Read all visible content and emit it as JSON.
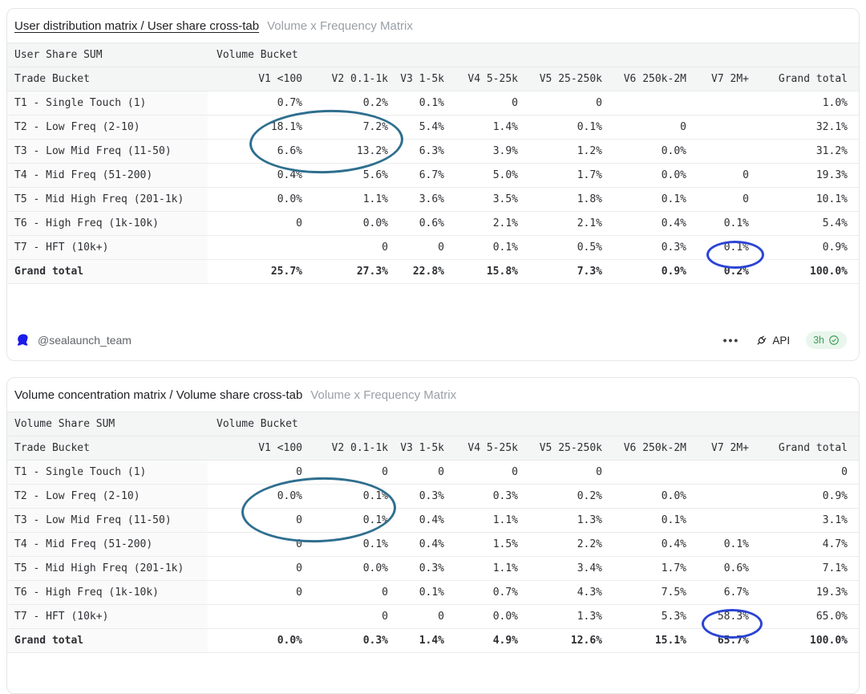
{
  "colors": {
    "annotation_teal": "#2f6f8f",
    "annotation_blue": "#2b45d4",
    "logo_blue": "#1b1ce8",
    "badge_green_bg": "#e9f6ed",
    "badge_green_text": "#3f9e5a"
  },
  "footer": {
    "handle": "@sealaunch_team",
    "menu_icon": "•••",
    "api_label": "API",
    "freshness": "3h",
    "check_icon": "check-seal",
    "plug_icon": "plug"
  },
  "chart_data": [
    {
      "type": "table",
      "title": "User distribution matrix / User share cross-tab",
      "subtitle": "Volume x Frequency Matrix",
      "measure_label": "User Share SUM",
      "bucket_group_label": "Volume Bucket",
      "row_header": "Trade Bucket",
      "columns": [
        "V1 <100",
        "V2 0.1-1k",
        "V3 1-5k",
        "V4 5-25k",
        "V5 25-250k",
        "V6 250k-2M",
        "V7 2M+",
        "Grand total"
      ],
      "rows": [
        {
          "label": "T1 - Single Touch (1)",
          "values": [
            "0.7%",
            "0.2%",
            "0.1%",
            "0",
            "0",
            "",
            "",
            "1.0%"
          ]
        },
        {
          "label": "T2 - Low Freq (2-10)",
          "values": [
            "18.1%",
            "7.2%",
            "5.4%",
            "1.4%",
            "0.1%",
            "0",
            "",
            "32.1%"
          ]
        },
        {
          "label": "T3 - Low Mid Freq (11-50)",
          "values": [
            "6.6%",
            "13.2%",
            "6.3%",
            "3.9%",
            "1.2%",
            "0.0%",
            "",
            "31.2%"
          ]
        },
        {
          "label": "T4 - Mid Freq (51-200)",
          "values": [
            "0.4%",
            "5.6%",
            "6.7%",
            "5.0%",
            "1.7%",
            "0.0%",
            "0",
            "19.3%"
          ]
        },
        {
          "label": "T5 - Mid High Freq (201-1k)",
          "values": [
            "0.0%",
            "1.1%",
            "3.6%",
            "3.5%",
            "1.8%",
            "0.1%",
            "0",
            "10.1%"
          ]
        },
        {
          "label": "T6 - High Freq (1k-10k)",
          "values": [
            "0",
            "0.0%",
            "0.6%",
            "2.1%",
            "2.1%",
            "0.4%",
            "0.1%",
            "5.4%"
          ]
        },
        {
          "label": "T7 - HFT (10k+)",
          "values": [
            "",
            "0",
            "0",
            "0.1%",
            "0.5%",
            "0.3%",
            "0.1%",
            "0.9%"
          ]
        },
        {
          "label": "Grand total",
          "values": [
            "25.7%",
            "27.3%",
            "22.8%",
            "15.8%",
            "7.3%",
            "0.9%",
            "0.2%",
            "100.0%"
          ],
          "bold": true
        }
      ],
      "annotations": [
        {
          "shape": "ellipse",
          "color": "teal",
          "circled_cells": "V1-V2 of T2-T3",
          "circled_values": [
            "18.1%",
            "7.2%",
            "6.6%",
            "13.2%"
          ]
        },
        {
          "shape": "ellipse",
          "color": "blue",
          "circled_cells": "V7 of T7",
          "circled_values": [
            "0.1%"
          ]
        }
      ]
    },
    {
      "type": "table",
      "title": "Volume concentration matrix / Volume share cross-tab",
      "subtitle": "Volume x Frequency Matrix",
      "measure_label": "Volume Share SUM",
      "bucket_group_label": "Volume Bucket",
      "row_header": "Trade Bucket",
      "columns": [
        "V1 <100",
        "V2 0.1-1k",
        "V3 1-5k",
        "V4 5-25k",
        "V5 25-250k",
        "V6 250k-2M",
        "V7 2M+",
        "Grand total"
      ],
      "rows": [
        {
          "label": "T1 - Single Touch (1)",
          "values": [
            "0",
            "0",
            "0",
            "0",
            "0",
            "",
            "",
            "0"
          ]
        },
        {
          "label": "T2 - Low Freq (2-10)",
          "values": [
            "0.0%",
            "0.1%",
            "0.3%",
            "0.3%",
            "0.2%",
            "0.0%",
            "",
            "0.9%"
          ]
        },
        {
          "label": "T3 - Low Mid Freq (11-50)",
          "values": [
            "0",
            "0.1%",
            "0.4%",
            "1.1%",
            "1.3%",
            "0.1%",
            "",
            "3.1%"
          ]
        },
        {
          "label": "T4 - Mid Freq (51-200)",
          "values": [
            "0",
            "0.1%",
            "0.4%",
            "1.5%",
            "2.2%",
            "0.4%",
            "0.1%",
            "4.7%"
          ]
        },
        {
          "label": "T5 - Mid High Freq (201-1k)",
          "values": [
            "0",
            "0.0%",
            "0.3%",
            "1.1%",
            "3.4%",
            "1.7%",
            "0.6%",
            "7.1%"
          ]
        },
        {
          "label": "T6 - High Freq (1k-10k)",
          "values": [
            "0",
            "0",
            "0.1%",
            "0.7%",
            "4.3%",
            "7.5%",
            "6.7%",
            "19.3%"
          ]
        },
        {
          "label": "T7 - HFT (10k+)",
          "values": [
            "",
            "0",
            "0",
            "0.0%",
            "1.3%",
            "5.3%",
            "58.3%",
            "65.0%"
          ]
        },
        {
          "label": "Grand total",
          "values": [
            "0.0%",
            "0.3%",
            "1.4%",
            "4.9%",
            "12.6%",
            "15.1%",
            "65.7%",
            "100.0%"
          ],
          "bold": true
        }
      ],
      "annotations": [
        {
          "shape": "ellipse",
          "color": "teal",
          "circled_cells": "V1-V2 of T2-T3",
          "circled_values": [
            "0.0%",
            "0.1%",
            "0",
            "0.1%"
          ]
        },
        {
          "shape": "ellipse",
          "color": "blue",
          "circled_cells": "V7 of T7",
          "circled_values": [
            "58.3%"
          ]
        }
      ]
    }
  ]
}
